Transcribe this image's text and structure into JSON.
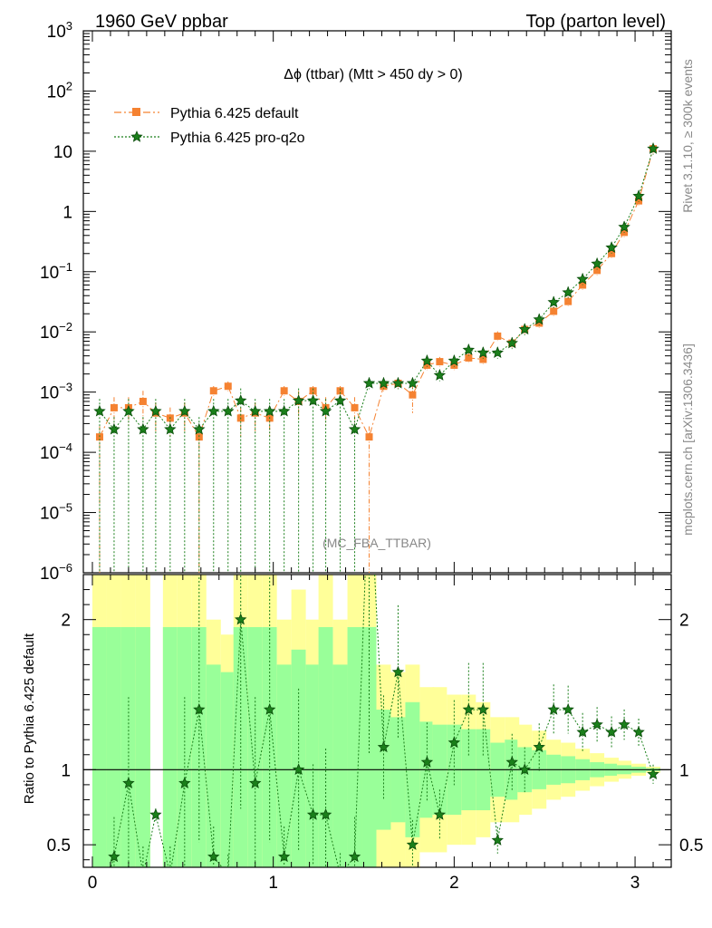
{
  "header": {
    "left": "1960 GeV ppbar",
    "right": "Top (parton level)"
  },
  "side": {
    "rivet": "Rivet 3.1.10, ≥ 300k events",
    "mcplots": "mcplots.cern.ch [arXiv:1306.3436]"
  },
  "chart_data": {
    "type": "line",
    "title": "Δϕ (ttbar) (Mtt > 450 dy > 0)",
    "watermark": "(MC_FBA_TTBAR)",
    "xlabel": "",
    "ylabel_main": "",
    "ylabel_ratio": "Ratio to Pythia 6.425 default",
    "xlim": [
      -0.05,
      3.2
    ],
    "ylim_main": [
      1e-06,
      1000
    ],
    "ylim_ratio": [
      0.35,
      2.3
    ],
    "log_y_main": true,
    "legend_position": "top-left",
    "x_ticks": [
      "0",
      "1",
      "2",
      "3"
    ],
    "main_y_ticks": [
      {
        "v": 1000,
        "base": "10",
        "exp": "3"
      },
      {
        "v": 100,
        "base": "10",
        "exp": "2"
      },
      {
        "v": 10,
        "base": "10",
        "exp": ""
      },
      {
        "v": 1,
        "base": "1",
        "exp": ""
      },
      {
        "v": 0.1,
        "base": "10",
        "exp": "−1"
      },
      {
        "v": 0.01,
        "base": "10",
        "exp": "−2"
      },
      {
        "v": 0.001,
        "base": "10",
        "exp": "−3"
      },
      {
        "v": 0.0001,
        "base": "10",
        "exp": "−4"
      },
      {
        "v": 1e-05,
        "base": "10",
        "exp": "−5"
      },
      {
        "v": 1e-06,
        "base": "10",
        "exp": "−6"
      }
    ],
    "ratio_y_ticks": [
      {
        "v": 2,
        "label": "2"
      },
      {
        "v": 1,
        "label": "1"
      },
      {
        "v": 0.5,
        "label": "0.5"
      }
    ],
    "colors": {
      "default": "#f58231",
      "proq2o": "#1a7f1a",
      "band_inner": "#99ff99",
      "band_outer": "#ffff99"
    },
    "x": [
      0.04,
      0.12,
      0.2,
      0.28,
      0.35,
      0.43,
      0.51,
      0.59,
      0.67,
      0.75,
      0.82,
      0.9,
      0.98,
      1.06,
      1.14,
      1.22,
      1.29,
      1.37,
      1.45,
      1.53,
      1.61,
      1.69,
      1.77,
      1.85,
      1.92,
      2.0,
      2.08,
      2.16,
      2.24,
      2.32,
      2.39,
      2.47,
      2.55,
      2.63,
      2.71,
      2.79,
      2.87,
      2.94,
      3.02,
      3.1
    ],
    "series": [
      {
        "name": "Pythia 6.425 default",
        "values": [
          0.00018,
          0.00055,
          0.00055,
          0.0007,
          0.00045,
          0.00037,
          0.00045,
          0.00018,
          0.00105,
          0.00125,
          0.00037,
          0.00045,
          0.00037,
          0.00105,
          0.0007,
          0.00105,
          0.00055,
          0.00105,
          0.00055,
          0.00018,
          0.00125,
          0.0014,
          0.0009,
          0.0028,
          0.0032,
          0.0028,
          0.0037,
          0.0035,
          0.0085,
          0.0065,
          0.011,
          0.014,
          0.022,
          0.032,
          0.06,
          0.105,
          0.2,
          0.45,
          1.5,
          11
        ]
      },
      {
        "name": "Pythia 6.425 pro-q2o",
        "values": [
          0.00048,
          0.00024,
          0.00048,
          0.00024,
          0.00048,
          0.00024,
          0.00048,
          0.00024,
          0.00048,
          0.00048,
          0.00072,
          0.00048,
          0.00048,
          0.00048,
          0.00072,
          0.00072,
          0.00048,
          0.00072,
          0.00024,
          0.0014,
          0.0014,
          0.0014,
          0.0014,
          0.0033,
          0.0019,
          0.0033,
          0.005,
          0.0045,
          0.0045,
          0.0065,
          0.011,
          0.016,
          0.031,
          0.045,
          0.075,
          0.135,
          0.25,
          0.55,
          1.8,
          11
        ]
      }
    ],
    "ratio_values": [
      0.1,
      0.42,
      0.91,
      0.3,
      0.7,
      0.3,
      0.91,
      1.4,
      0.42,
      0.3,
      2.0,
      0.91,
      1.4,
      0.42,
      1.0,
      0.7,
      0.7,
      0.3,
      0.42,
      3.0,
      1.15,
      1.65,
      0.5,
      1.05,
      0.7,
      1.18,
      1.4,
      1.4,
      0.53,
      1.05,
      1.0,
      1.15,
      1.4,
      1.4,
      1.25,
      1.3,
      1.25,
      1.3,
      1.25,
      0.97
    ],
    "band_inner_halfwidth": [
      0.95,
      0.95,
      0.95,
      0.95,
      0.0,
      0.95,
      0.95,
      0.95,
      0.7,
      0.65,
      0.95,
      0.95,
      0.95,
      0.7,
      0.8,
      0.7,
      0.95,
      0.7,
      0.95,
      0.95,
      0.4,
      0.35,
      0.45,
      0.32,
      0.3,
      0.3,
      0.27,
      0.27,
      0.18,
      0.2,
      0.15,
      0.13,
      0.1,
      0.09,
      0.07,
      0.05,
      0.04,
      0.03,
      0.02,
      0.01
    ],
    "band_outer_halfwidth": [
      1.5,
      1.5,
      1.5,
      1.5,
      0.0,
      1.5,
      1.5,
      1.5,
      1.0,
      0.9,
      1.5,
      1.5,
      1.5,
      1.0,
      1.2,
      1.0,
      1.5,
      1.0,
      1.5,
      1.5,
      0.7,
      0.65,
      0.7,
      0.55,
      0.55,
      0.5,
      0.5,
      0.45,
      0.35,
      0.35,
      0.3,
      0.26,
      0.2,
      0.18,
      0.14,
      0.11,
      0.08,
      0.06,
      0.04,
      0.02
    ]
  }
}
